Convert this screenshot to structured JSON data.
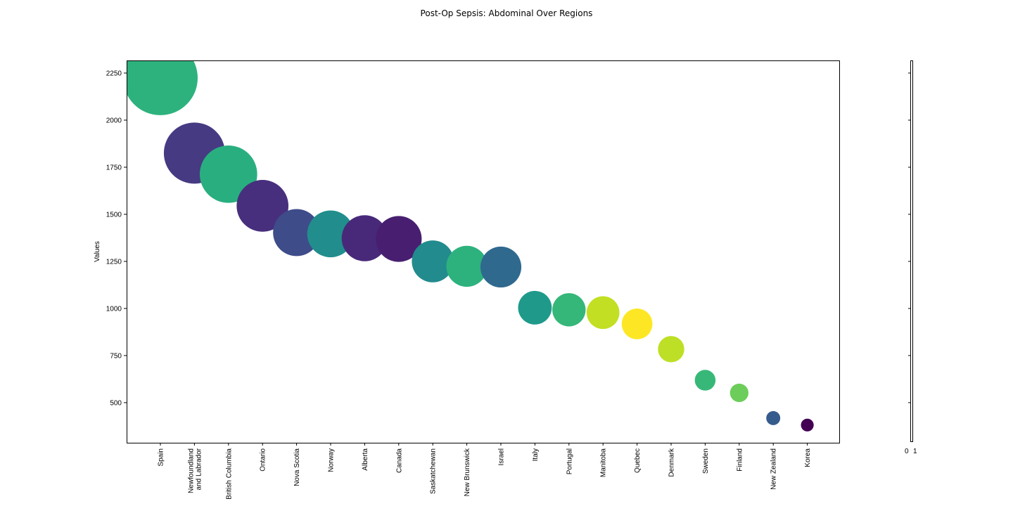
{
  "chart_data": {
    "type": "scatter",
    "title": "Post-Op Sepsis: Abdominal Over Regions",
    "xlabel": "",
    "ylabel": "Values",
    "ylim": [
      287,
      2317
    ],
    "yticks": [
      500,
      750,
      1000,
      1250,
      1500,
      1750,
      2000,
      2250
    ],
    "grid": false,
    "marker_size_encodes": "value",
    "categories": [
      "Spain",
      "Newfoundland and Labrador",
      "British Columbia",
      "Ontario",
      "Nova Scotia",
      "Norway",
      "Alberta",
      "Canada",
      "Saskatchewan",
      "New Brunswick",
      "Israel",
      "Italy",
      "Portugal",
      "Manitoba",
      "Quebec",
      "Denmark",
      "Sweden",
      "Finland",
      "New Zealand",
      "Korea"
    ],
    "values": [
      2224,
      1825,
      1713,
      1545,
      1403,
      1396,
      1373,
      1369,
      1250,
      1224,
      1220,
      1004,
      993,
      978,
      918,
      784,
      619,
      552,
      418,
      381
    ],
    "colors": [
      "#2db27d",
      "#463a83",
      "#29af7f",
      "#472f7d",
      "#3e4c8a",
      "#218e8d",
      "#482979",
      "#481f70",
      "#228b8d",
      "#2db27d",
      "#30698e",
      "#1f9a8a",
      "#35b779",
      "#c2df23",
      "#fde725",
      "#bddf26",
      "#37b878",
      "#6ccd5a",
      "#365c8d",
      "#440154"
    ],
    "colorbar": {
      "tick_labels": [
        "0",
        "1"
      ]
    }
  }
}
